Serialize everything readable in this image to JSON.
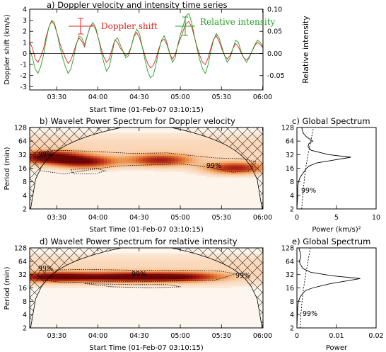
{
  "chart_data": [
    {
      "type": "line",
      "panel": "a",
      "title": "a) Doppler velocity and intensity time series",
      "xlabel": "Start Time (01-Feb-07 03:10:15)",
      "ylabel": "Doppler shift (km/s)",
      "ylabel_right": "Relative intensity",
      "x_ticks": [
        "03:30",
        "04:00",
        "04:30",
        "05:00",
        "05:30",
        "06:00"
      ],
      "y_ticks": [
        "-3",
        "-2",
        "-1",
        "0",
        "1",
        "2",
        "3",
        "4"
      ],
      "y_ticks_right": [
        "-0.05",
        "0.00",
        "0.05",
        "0.10"
      ],
      "xlim_min": [
        0,
        170
      ],
      "ylim": [
        -3.3,
        4
      ],
      "ylim_right": [
        -0.0825,
        0.1
      ],
      "grid": false,
      "legend": [
        {
          "name": "Doppler shift",
          "color": "#e02020"
        },
        {
          "name": "Relative intensity",
          "color": "#22a022"
        }
      ],
      "series": [
        {
          "name": "Doppler shift",
          "color": "#e02020",
          "x": [
            0,
            2,
            4,
            6,
            8,
            10,
            12,
            14,
            16,
            18,
            20,
            22,
            24,
            26,
            28,
            30,
            32,
            34,
            36,
            38,
            40,
            42,
            44,
            46,
            48,
            50,
            52,
            54,
            56,
            58,
            60,
            62,
            64,
            66,
            68,
            70,
            72,
            74,
            76,
            78,
            80,
            82,
            84,
            86,
            88,
            90,
            92,
            94,
            96,
            98,
            100,
            102,
            104,
            106,
            108,
            110,
            112,
            114,
            116,
            118,
            120,
            122,
            124,
            126,
            128,
            130,
            132,
            134,
            136,
            138,
            140,
            142,
            144,
            146,
            148,
            150,
            152,
            154,
            156,
            158,
            160,
            162,
            164,
            166,
            168,
            170
          ],
          "values": [
            1.0,
            0.5,
            -0.5,
            -0.8,
            -0.3,
            0.4,
            1.5,
            2.4,
            2.9,
            2.6,
            1.8,
            0.9,
            0.2,
            -0.4,
            -0.9,
            -0.6,
            0.1,
            0.9,
            1.4,
            1.1,
            0.6,
            1.6,
            2.4,
            2.6,
            2.2,
            1.4,
            0.5,
            -0.3,
            -0.8,
            -0.5,
            0.4,
            1.2,
            1.0,
            0.5,
            0.2,
            -0.2,
            0.0,
            0.6,
            1.5,
            1.9,
            1.4,
            0.6,
            -0.2,
            -0.9,
            -1.3,
            -1.1,
            -0.5,
            0.4,
            1.1,
            1.3,
            0.8,
            0.0,
            -0.5,
            -0.1,
            0.7,
            1.4,
            2.1,
            2.7,
            2.9,
            2.4,
            1.5,
            0.6,
            -0.2,
            -0.8,
            -1.0,
            -0.4,
            0.5,
            1.3,
            1.6,
            1.1,
            0.4,
            -0.2,
            -0.5,
            -0.2,
            0.4,
            0.9,
            0.6,
            0.1,
            -0.4,
            -0.6,
            -0.3,
            0.2,
            0.7,
            1.0,
            0.8,
            0.5
          ]
        },
        {
          "name": "Relative intensity",
          "color": "#22a022",
          "axis": "right",
          "x": [
            0,
            2,
            4,
            6,
            8,
            10,
            12,
            14,
            16,
            18,
            20,
            22,
            24,
            26,
            28,
            30,
            32,
            34,
            36,
            38,
            40,
            42,
            44,
            46,
            48,
            50,
            52,
            54,
            56,
            58,
            60,
            62,
            64,
            66,
            68,
            70,
            72,
            74,
            76,
            78,
            80,
            82,
            84,
            86,
            88,
            90,
            92,
            94,
            96,
            98,
            100,
            102,
            104,
            106,
            108,
            110,
            112,
            114,
            116,
            118,
            120,
            122,
            124,
            126,
            128,
            130,
            132,
            134,
            136,
            138,
            140,
            142,
            144,
            146,
            148,
            150,
            152,
            154,
            156,
            158,
            160,
            162,
            164,
            166,
            168,
            170
          ],
          "values": [
            0.01,
            -0.01,
            -0.035,
            -0.045,
            -0.03,
            -0.005,
            0.03,
            0.06,
            0.075,
            0.07,
            0.045,
            0.015,
            -0.01,
            -0.03,
            -0.045,
            -0.035,
            -0.01,
            0.02,
            0.04,
            0.035,
            0.02,
            0.04,
            0.06,
            0.07,
            0.06,
            0.035,
            0.005,
            -0.02,
            -0.04,
            -0.03,
            0.0,
            0.03,
            0.035,
            0.02,
            0.005,
            -0.01,
            -0.005,
            0.015,
            0.04,
            0.055,
            0.045,
            0.015,
            -0.015,
            -0.04,
            -0.055,
            -0.05,
            -0.025,
            0.005,
            0.03,
            0.04,
            0.025,
            0.0,
            -0.02,
            -0.01,
            0.02,
            0.045,
            0.065,
            0.085,
            0.09,
            0.07,
            0.04,
            0.01,
            -0.015,
            -0.035,
            -0.045,
            -0.025,
            0.005,
            0.03,
            0.045,
            0.035,
            0.015,
            -0.005,
            -0.02,
            -0.01,
            0.01,
            0.03,
            0.025,
            0.005,
            -0.01,
            -0.02,
            -0.01,
            0.005,
            0.02,
            0.03,
            0.025,
            0.015
          ]
        }
      ]
    },
    {
      "type": "heatmap",
      "panel": "b",
      "title": "b) Wavelet Power Spectrum for Doppler velocity",
      "xlabel": "Start Time (01-Feb-07 03:10:15)",
      "ylabel": "Period (min)",
      "x_ticks": [
        "03:30",
        "04:00",
        "04:30",
        "05:00",
        "05:30",
        "06:00"
      ],
      "y_ticks": [
        "2",
        "4",
        "8",
        "16",
        "32",
        "64",
        "128"
      ],
      "y_scale": "log2",
      "ylim": [
        2,
        128
      ],
      "significance_label": "99%",
      "power_peaks": [
        {
          "x_min": 15,
          "period": 28,
          "strength": 1.0
        },
        {
          "x_min": 40,
          "period": 22,
          "strength": 0.8
        },
        {
          "x_min": 95,
          "period": 24,
          "strength": 0.7
        },
        {
          "x_min": 150,
          "period": 16,
          "strength": 0.75
        }
      ]
    },
    {
      "type": "line",
      "panel": "c",
      "title": "c) Global Spectrum",
      "xlabel": "Power (km/s)²",
      "y_ticks": [
        "2",
        "4",
        "8",
        "16",
        "32",
        "64",
        "128"
      ],
      "x_ticks": [
        "0",
        "5",
        "10"
      ],
      "xlim": [
        0,
        10
      ],
      "ylim": [
        2,
        128
      ],
      "y_scale": "log2",
      "significance_label": "99%",
      "series": [
        {
          "name": "",
          "x": [
            0.0,
            0.05,
            0.1,
            0.1,
            0.2,
            0.4,
            0.7,
            1.0,
            1.2,
            1.6,
            2.5,
            4.5,
            6.8,
            4.0,
            1.8,
            1.4,
            1.5,
            2.0,
            1.2,
            0.8,
            0.7,
            0.6
          ],
          "y": [
            2,
            3,
            4,
            6,
            8,
            10,
            12,
            14,
            16,
            18,
            21,
            24,
            28,
            32,
            40,
            48,
            56,
            64,
            80,
            96,
            112,
            128
          ]
        },
        {
          "name": "",
          "dashed": true,
          "x": [
            0.6,
            0.75,
            0.9,
            1.1,
            1.4,
            1.75,
            2.1
          ],
          "y": [
            2,
            4,
            8,
            16,
            32,
            64,
            128
          ]
        }
      ]
    },
    {
      "type": "heatmap",
      "panel": "d",
      "title": "d) Wavelet Power Spectrum for relative intensity",
      "xlabel": "Start Time (01-Feb-07 03:10:15)",
      "ylabel": "Period (min)",
      "x_ticks": [
        "03:30",
        "04:00",
        "04:30",
        "05:00",
        "05:30",
        "06:00"
      ],
      "y_ticks": [
        "2",
        "4",
        "8",
        "16",
        "32",
        "64",
        "128"
      ],
      "y_scale": "log2",
      "ylim": [
        2,
        128
      ],
      "significance_label": "99%",
      "power_peaks": [
        {
          "x_min": 20,
          "period": 28,
          "strength": 1.0
        },
        {
          "x_min": 70,
          "period": 28,
          "strength": 0.85
        },
        {
          "x_min": 110,
          "period": 28,
          "strength": 0.8
        }
      ]
    },
    {
      "type": "line",
      "panel": "e",
      "title": "e) Global Spectrum",
      "xlabel": "Power",
      "y_ticks": [
        "2",
        "4",
        "8",
        "16",
        "32",
        "64",
        "128"
      ],
      "x_ticks": [
        "0",
        "0.01",
        "0.02"
      ],
      "xlim": [
        0,
        0.02
      ],
      "ylim": [
        2,
        128
      ],
      "y_scale": "log2",
      "significance_label": "99%",
      "series": [
        {
          "name": "",
          "x": [
            0.0,
            0.0001,
            0.0002,
            0.0004,
            0.0008,
            0.0015,
            0.0022,
            0.004,
            0.0085,
            0.016,
            0.009,
            0.0035,
            0.0015,
            0.0008,
            0.0006,
            0.001,
            0.0008,
            0.0005
          ],
          "y": [
            2,
            4,
            6,
            8,
            10,
            12,
            14,
            16,
            20,
            26,
            30,
            36,
            44,
            56,
            64,
            80,
            100,
            128
          ]
        },
        {
          "name": "",
          "dashed": true,
          "x": [
            0.0008,
            0.001,
            0.0013,
            0.0017,
            0.0022,
            0.0028,
            0.0034
          ],
          "y": [
            2,
            4,
            8,
            16,
            32,
            64,
            128
          ]
        }
      ]
    }
  ]
}
